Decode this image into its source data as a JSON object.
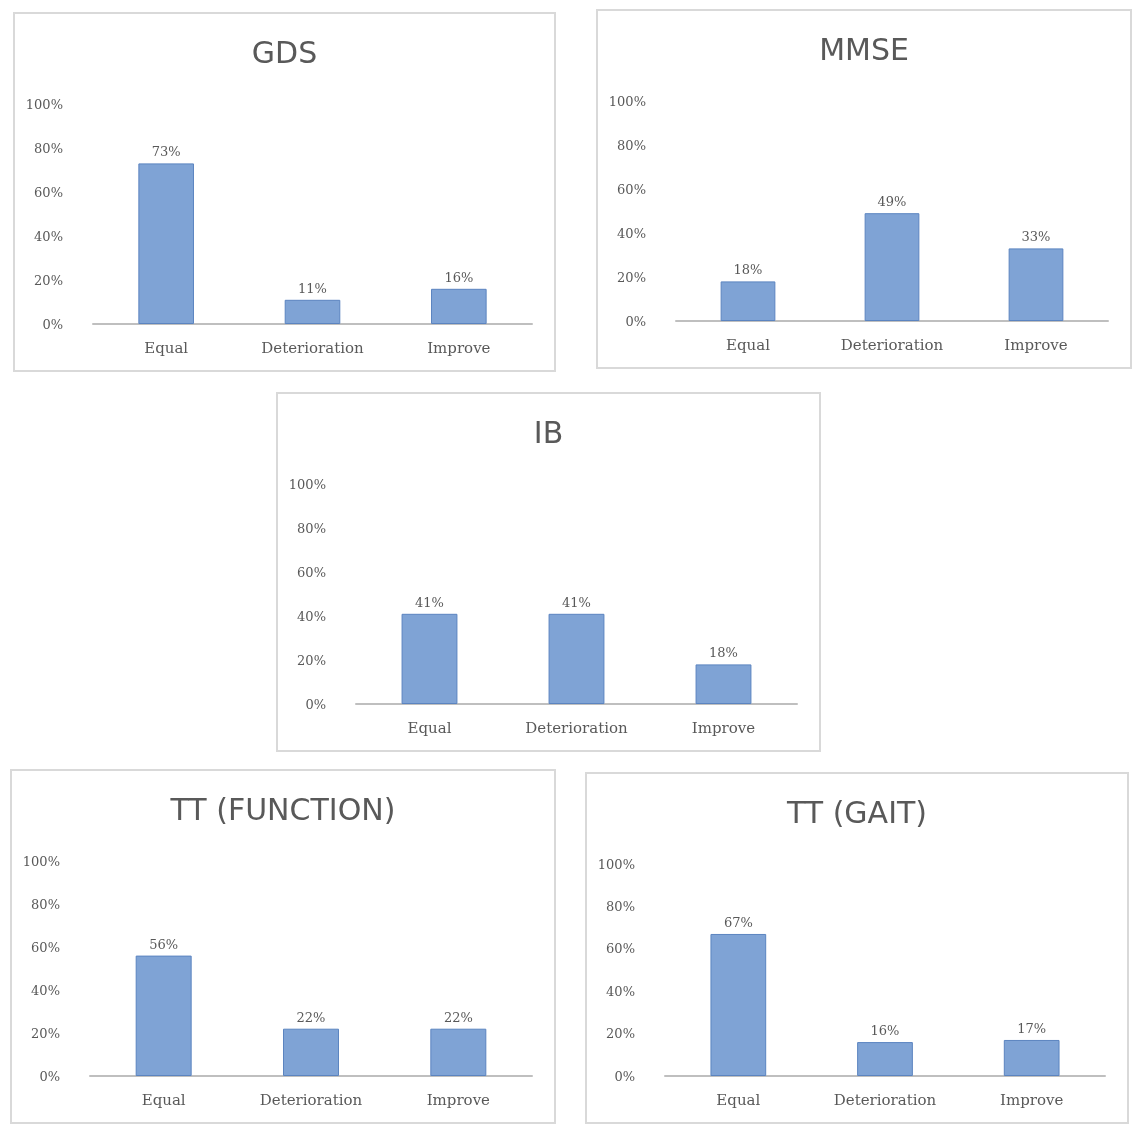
{
  "chart_data": [
    {
      "type": "bar",
      "title": "GDS",
      "categories": [
        "Equal",
        "Deterioration",
        "Improve"
      ],
      "values": [
        73,
        11,
        16
      ],
      "value_labels": [
        "73%",
        "11%",
        "16%"
      ],
      "color": "#7fa3d5",
      "ylim": [
        0,
        100
      ],
      "yticks": [
        {
          "value": 0,
          "label": "0%"
        },
        {
          "value": 20,
          "label": "20%"
        },
        {
          "value": 40,
          "label": "40%"
        },
        {
          "value": 60,
          "label": "60%"
        },
        {
          "value": 80,
          "label": "80%"
        },
        {
          "value": 100,
          "label": "100%"
        }
      ],
      "grid": false
    },
    {
      "type": "bar",
      "title": "MMSE",
      "categories": [
        "Equal",
        "Deterioration",
        "Improve"
      ],
      "values": [
        18,
        49,
        33
      ],
      "value_labels": [
        "18%",
        "49%",
        "33%"
      ],
      "color": "#7fa3d5",
      "ylim": [
        0,
        100
      ],
      "yticks": [
        {
          "value": 0,
          "label": "0%"
        },
        {
          "value": 20,
          "label": "20%"
        },
        {
          "value": 40,
          "label": "40%"
        },
        {
          "value": 60,
          "label": "60%"
        },
        {
          "value": 80,
          "label": "80%"
        },
        {
          "value": 100,
          "label": "100%"
        }
      ],
      "grid": false
    },
    {
      "type": "bar",
      "title": "IB",
      "categories": [
        "Equal",
        "Deterioration",
        "Improve"
      ],
      "values": [
        41,
        41,
        18
      ],
      "value_labels": [
        "41%",
        "41%",
        "18%"
      ],
      "color": "#7fa3d5",
      "ylim": [
        0,
        100
      ],
      "yticks": [
        {
          "value": 0,
          "label": "0%"
        },
        {
          "value": 20,
          "label": "20%"
        },
        {
          "value": 40,
          "label": "40%"
        },
        {
          "value": 60,
          "label": "60%"
        },
        {
          "value": 80,
          "label": "80%"
        },
        {
          "value": 100,
          "label": "100%"
        }
      ],
      "grid": false
    },
    {
      "type": "bar",
      "title": "TT (FUNCTION)",
      "categories": [
        "Equal",
        "Deterioration",
        "Improve"
      ],
      "values": [
        56,
        22,
        22
      ],
      "value_labels": [
        "56%",
        "22%",
        "22%"
      ],
      "color": "#7fa3d5",
      "ylim": [
        0,
        100
      ],
      "yticks": [
        {
          "value": 0,
          "label": "0%"
        },
        {
          "value": 20,
          "label": "20%"
        },
        {
          "value": 40,
          "label": "40%"
        },
        {
          "value": 60,
          "label": "60%"
        },
        {
          "value": 80,
          "label": "80%"
        },
        {
          "value": 100,
          "label": "100%"
        }
      ],
      "grid": false
    },
    {
      "type": "bar",
      "title": "TT (GAIT)",
      "categories": [
        "Equal",
        "Deterioration",
        "Improve"
      ],
      "values": [
        67,
        16,
        17
      ],
      "value_labels": [
        "67%",
        "16%",
        "17%"
      ],
      "color": "#7fa3d5",
      "ylim": [
        0,
        100
      ],
      "yticks": [
        {
          "value": 0,
          "label": "0%"
        },
        {
          "value": 20,
          "label": "20%"
        },
        {
          "value": 40,
          "label": "40%"
        },
        {
          "value": 60,
          "label": "60%"
        },
        {
          "value": 80,
          "label": "80%"
        },
        {
          "value": 100,
          "label": "100%"
        }
      ],
      "grid": false
    }
  ]
}
